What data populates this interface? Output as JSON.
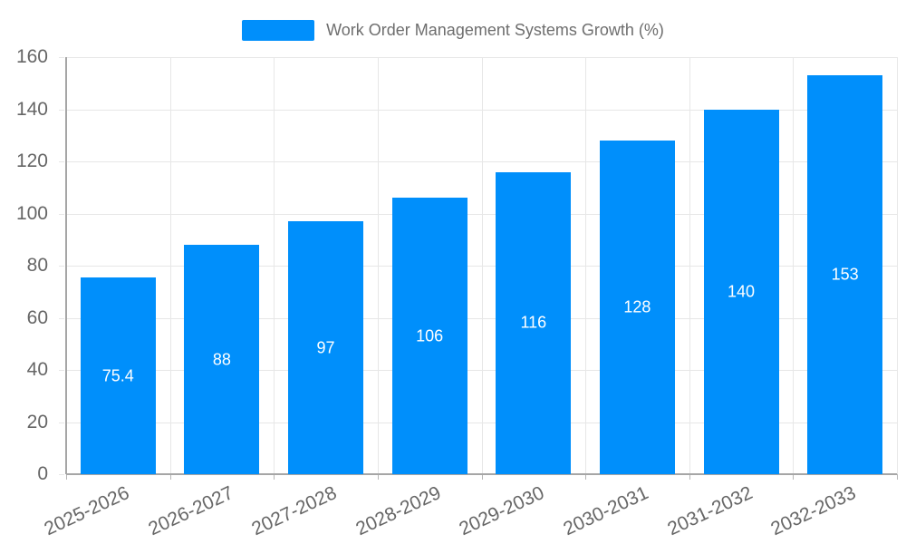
{
  "chart_data": {
    "type": "bar",
    "title": "Work Order Management Systems Growth (%)",
    "categories": [
      "2025-2026",
      "2026-2027",
      "2027-2028",
      "2028-2029",
      "2029-2030",
      "2030-2031",
      "2031-2032",
      "2032-2033"
    ],
    "series": [
      {
        "name": "Work Order Management Systems Growth (%)",
        "color": "#008FFB",
        "values": [
          75.4,
          88,
          97,
          106,
          116,
          128,
          140,
          153
        ]
      }
    ],
    "data_labels": [
      "75.4",
      "88",
      "97",
      "106",
      "116",
      "128",
      "140",
      "153"
    ],
    "xlabel": "",
    "ylabel": "",
    "ylim": [
      0,
      160
    ],
    "yticks": [
      0,
      20,
      40,
      60,
      80,
      100,
      120,
      140,
      160
    ],
    "grid": "on",
    "legend_position": "top",
    "colors": {
      "bar": "#008FFB",
      "grid": "#e7e7e7",
      "axis": "#a6a6a6",
      "tick": "#b6b6b6",
      "axis_label": "#666666",
      "data_label": "#ffffff",
      "legend_text": "#6e6e6e"
    }
  }
}
